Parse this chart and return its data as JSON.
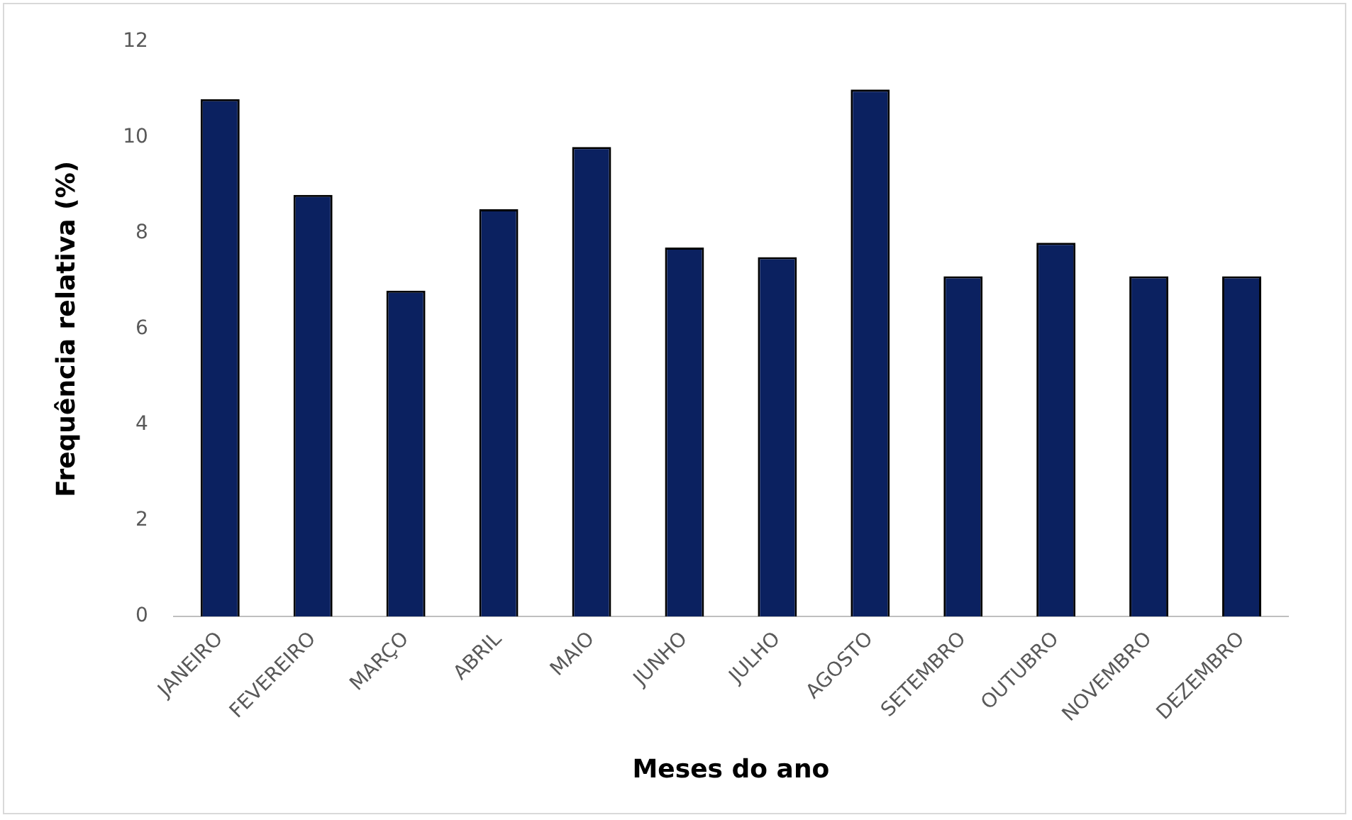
{
  "chart_data": {
    "type": "bar",
    "xlabel": "Meses do ano",
    "ylabel": "Frequência relativa (%)",
    "categories": [
      "JANEIRO",
      "FEVEREIRO",
      "MARÇO",
      "ABRIL",
      "MAIO",
      "JUNHO",
      "JULHO",
      "AGOSTO",
      "SETEMBRO",
      "OUTUBRO",
      "NOVEMBRO",
      "DEZEMBRO"
    ],
    "values": [
      10.8,
      8.8,
      6.8,
      8.5,
      9.8,
      7.7,
      7.5,
      11.0,
      7.1,
      7.8,
      7.1,
      7.1
    ],
    "color": "#0b2160",
    "ylim": [
      0,
      12
    ],
    "yticks": [
      0,
      2,
      4,
      6,
      8,
      10,
      12
    ],
    "grid": false,
    "legend": false
  }
}
